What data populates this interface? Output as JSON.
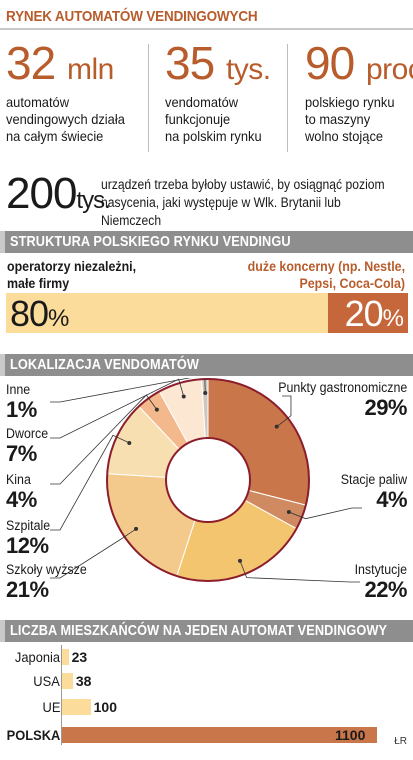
{
  "title": "RYNEK AUTOMATÓW VENDINGOWYCH",
  "stats": [
    {
      "number": "32",
      "unit": "mln",
      "desc1": "automatów",
      "desc2": "vendingowych działa",
      "desc3": "na całym świecie"
    },
    {
      "number": "35",
      "unit": "tys.",
      "desc1": "vendomatów",
      "desc2": "funkcjonuje",
      "desc3": "na polskim rynku"
    },
    {
      "number": "90",
      "unit": "proc.",
      "desc1": "polskiego rynku",
      "desc2": "to maszyny",
      "desc3": "wolno stojące"
    }
  ],
  "big": {
    "number": "200",
    "unit": "tys.",
    "desc": "urządzeń trzeba byłoby ustawić, by osiągnąć poziom nasycenia, jaki występuje w Wlk. Brytanii lub Niemczech"
  },
  "sections": {
    "structure": "STRUKTURA POLSKIEGO RYNKU VENDINGU",
    "location": "LOKALIZACJA VENDOMATÓW",
    "residents": "LICZBA MIESZKAŃCÓW NA JEDEN AUTOMAT VENDINGOWY"
  },
  "structure_labels": {
    "left1": "operatorzy niezależni,",
    "left2": "małe firmy",
    "right1": "duże koncerny (np. Nestle,",
    "right2": "Pepsi, Coca-Cola)"
  },
  "colors": {
    "accent": "#b85c2c",
    "light": "#fbdc9b",
    "dark": "#c5673a",
    "header": "#8e8e8e"
  },
  "credit": "ŁR",
  "chart_data": [
    {
      "type": "bar",
      "title": "STRUKTURA POLSKIEGO RYNKU VENDINGU",
      "categories": [
        "operatorzy niezależni, małe firmy",
        "duże koncerny (np. Nestle, Pepsi, Coca-Cola)"
      ],
      "values": [
        80,
        20
      ],
      "labels": [
        "80",
        "20"
      ],
      "unit": "%",
      "colors": [
        "#fbdc9b",
        "#c5673a"
      ]
    },
    {
      "type": "pie",
      "title": "LOKALIZACJA VENDOMATÓW",
      "categories": [
        "Punkty gastronomiczne",
        "Stacje paliw",
        "Instytucje",
        "Szkoły wyższe",
        "Szpitale",
        "Kina",
        "Dworce",
        "Inne"
      ],
      "values": [
        29,
        4,
        22,
        21,
        12,
        4,
        7,
        1
      ],
      "labels": [
        "29%",
        "4%",
        "22%",
        "21%",
        "12%",
        "4%",
        "7%",
        "1%"
      ],
      "colors": [
        "#c9764a",
        "#cf8a62",
        "#f4c56f",
        "#f3c98c",
        "#f8dfb2",
        "#f3b98d",
        "#fce7d2",
        "#cfc7bd"
      ]
    },
    {
      "type": "bar",
      "title": "LICZBA MIESZKAŃCÓW NA JEDEN AUTOMAT VENDINGOWY",
      "categories": [
        "Japonia",
        "USA",
        "UE",
        "POLSKA"
      ],
      "values": [
        23,
        38,
        100,
        1100
      ],
      "labels": [
        "23",
        "38",
        "100",
        "1100"
      ]
    }
  ]
}
